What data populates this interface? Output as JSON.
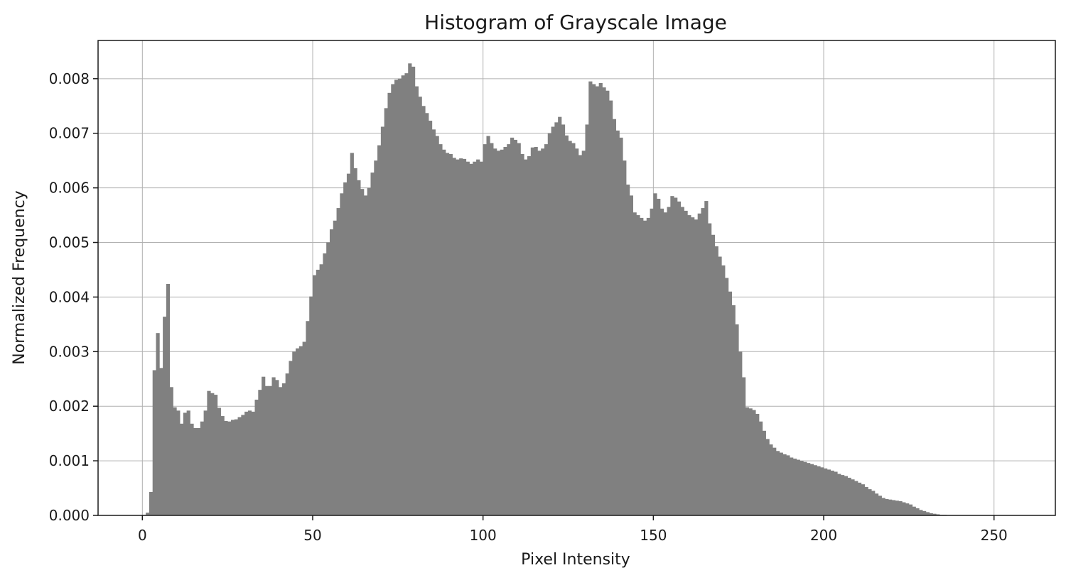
{
  "chart_data": {
    "type": "bar",
    "title": "Histogram of Grayscale Image",
    "xlabel": "Pixel Intensity",
    "ylabel": "Normalized Frequency",
    "xlim": [
      -13,
      268
    ],
    "ylim": [
      0,
      0.0087
    ],
    "grid": true,
    "bar_color": "#808080",
    "x_ticks": [
      {
        "value": 0,
        "label": "0"
      },
      {
        "value": 50,
        "label": "50"
      },
      {
        "value": 100,
        "label": "100"
      },
      {
        "value": 150,
        "label": "150"
      },
      {
        "value": 200,
        "label": "200"
      },
      {
        "value": 250,
        "label": "250"
      }
    ],
    "y_ticks": [
      {
        "value": 0.0,
        "label": "0.000"
      },
      {
        "value": 0.001,
        "label": "0.001"
      },
      {
        "value": 0.002,
        "label": "0.002"
      },
      {
        "value": 0.003,
        "label": "0.003"
      },
      {
        "value": 0.004,
        "label": "0.004"
      },
      {
        "value": 0.005,
        "label": "0.005"
      },
      {
        "value": 0.006,
        "label": "0.006"
      },
      {
        "value": 0.007,
        "label": "0.007"
      },
      {
        "value": 0.008,
        "label": "0.008"
      }
    ],
    "x_start": 0,
    "bin_width": 1,
    "values": [
      1e-05,
      5e-05,
      0.00043,
      0.00266,
      0.00334,
      0.0027,
      0.00364,
      0.00424,
      0.00235,
      0.00198,
      0.00192,
      0.00168,
      0.00188,
      0.00192,
      0.00168,
      0.0016,
      0.0016,
      0.00172,
      0.00192,
      0.00228,
      0.00224,
      0.00221,
      0.00197,
      0.00182,
      0.00173,
      0.00172,
      0.00175,
      0.00176,
      0.0018,
      0.00184,
      0.0019,
      0.00192,
      0.0019,
      0.00212,
      0.0023,
      0.00254,
      0.00237,
      0.00237,
      0.00253,
      0.00248,
      0.00235,
      0.00242,
      0.0026,
      0.00283,
      0.003,
      0.00306,
      0.0031,
      0.00318,
      0.00356,
      0.00401,
      0.0044,
      0.0045,
      0.0046,
      0.0048,
      0.005,
      0.00524,
      0.0054,
      0.00563,
      0.0059,
      0.0061,
      0.00626,
      0.00664,
      0.00636,
      0.00614,
      0.00598,
      0.00586,
      0.006,
      0.00628,
      0.0065,
      0.00678,
      0.00712,
      0.00746,
      0.00774,
      0.0079,
      0.00798,
      0.008,
      0.00806,
      0.0081,
      0.00828,
      0.00822,
      0.00786,
      0.00767,
      0.0075,
      0.00737,
      0.00723,
      0.00707,
      0.00695,
      0.0068,
      0.0067,
      0.00664,
      0.00662,
      0.00655,
      0.00652,
      0.00654,
      0.00653,
      0.00648,
      0.00644,
      0.00648,
      0.00652,
      0.00648,
      0.0068,
      0.00695,
      0.00682,
      0.00672,
      0.00668,
      0.0067,
      0.00675,
      0.0068,
      0.00692,
      0.00688,
      0.00682,
      0.00662,
      0.00652,
      0.00658,
      0.00674,
      0.00675,
      0.00668,
      0.00672,
      0.0068,
      0.007,
      0.00712,
      0.0072,
      0.0073,
      0.00716,
      0.00696,
      0.00686,
      0.00682,
      0.00672,
      0.0066,
      0.00668,
      0.00716,
      0.00795,
      0.0079,
      0.00786,
      0.00792,
      0.00784,
      0.00778,
      0.0076,
      0.00726,
      0.00705,
      0.00692,
      0.0065,
      0.00606,
      0.00586,
      0.00555,
      0.0055,
      0.00545,
      0.0054,
      0.00545,
      0.00562,
      0.0059,
      0.0058,
      0.00562,
      0.00555,
      0.00565,
      0.00585,
      0.00582,
      0.00575,
      0.00565,
      0.00558,
      0.0055,
      0.00546,
      0.00542,
      0.00553,
      0.00563,
      0.00576,
      0.00535,
      0.00514,
      0.00493,
      0.00474,
      0.00458,
      0.00435,
      0.0041,
      0.00385,
      0.0035,
      0.003,
      0.00253,
      0.00198,
      0.00196,
      0.00193,
      0.00186,
      0.00172,
      0.00155,
      0.0014,
      0.0013,
      0.00124,
      0.00118,
      0.00115,
      0.00112,
      0.0011,
      0.00106,
      0.00104,
      0.00102,
      0.001,
      0.00098,
      0.00096,
      0.00094,
      0.00092,
      0.0009,
      0.00088,
      0.00086,
      0.00084,
      0.00082,
      0.0008,
      0.00076,
      0.00074,
      0.00072,
      0.00069,
      0.00066,
      0.00063,
      0.0006,
      0.00057,
      0.00052,
      0.00048,
      0.00045,
      0.0004,
      0.00036,
      0.00032,
      0.0003,
      0.00029,
      0.00028,
      0.00027,
      0.00026,
      0.00024,
      0.00022,
      0.0002,
      0.00016,
      0.00013,
      0.0001,
      8e-05,
      6e-05,
      4e-05,
      3e-05,
      2e-05,
      1e-05,
      1e-05,
      5e-06,
      3e-06,
      2e-06,
      1e-06,
      0.0,
      0.0,
      0.0,
      0.0,
      0.0,
      0.0
    ]
  }
}
